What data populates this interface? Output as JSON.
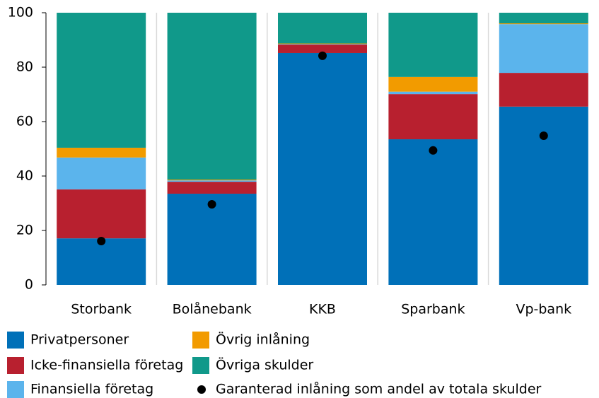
{
  "chart_data": {
    "type": "bar",
    "stacked": true,
    "categories": [
      "Storbank",
      "Bolånebank",
      "KKB",
      "Sparbank",
      "Vp-bank"
    ],
    "series": [
      {
        "name": "Privatpersoner",
        "color": "#0070b8",
        "values": [
          17.1,
          33.5,
          85.2,
          53.5,
          65.5
        ]
      },
      {
        "name": "Icke-finansiella företag",
        "color": "#b8202f",
        "values": [
          18.0,
          4.4,
          3.1,
          16.6,
          12.4
        ]
      },
      {
        "name": "Finansiella företag",
        "color": "#5bb4ec",
        "values": [
          11.7,
          0.5,
          0.2,
          0.9,
          17.9
        ]
      },
      {
        "name": "Övrig inlåning",
        "color": "#f29b00",
        "values": [
          3.6,
          0.3,
          0.2,
          5.4,
          0.3
        ]
      },
      {
        "name": "Övriga skulder",
        "color": "#10998a",
        "values": [
          49.6,
          61.3,
          11.3,
          23.6,
          3.9
        ]
      }
    ],
    "points": {
      "name": "Garanterad inlåning som andel av totala skulder",
      "color": "#000000",
      "values": [
        16.1,
        29.6,
        84.2,
        49.4,
        54.8
      ]
    },
    "ylim": [
      0,
      100
    ],
    "yticks": [
      0,
      20,
      40,
      60,
      80,
      100
    ]
  }
}
